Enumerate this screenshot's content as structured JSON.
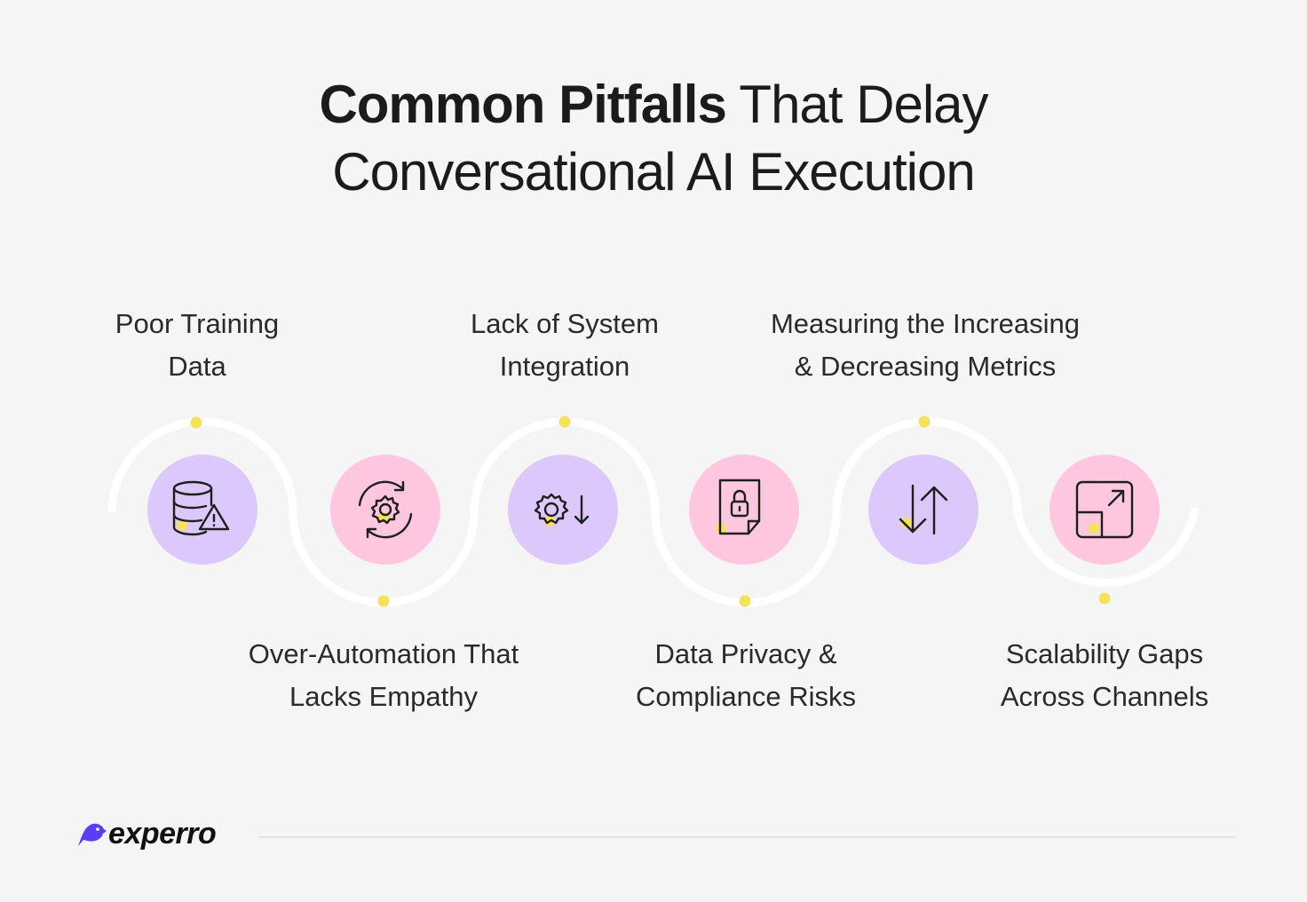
{
  "title": {
    "bold": "Common Pitfalls",
    "rest_line1": " That Delay",
    "line2": "Conversational AI Execution"
  },
  "items": [
    {
      "line1": "Poor Training",
      "line2": "Data",
      "icon": "database-warning-icon",
      "color": "#dcc8fb"
    },
    {
      "line1": "Over-Automation That",
      "line2": "Lacks Empathy",
      "icon": "gear-refresh-icon",
      "color": "#ffc7df"
    },
    {
      "line1": "Lack of System",
      "line2": "Integration",
      "icon": "gear-arrow-down-icon",
      "color": "#dcc8fb"
    },
    {
      "line1": "Data Privacy &",
      "line2": "Compliance Risks",
      "icon": "document-lock-icon",
      "color": "#ffc7df"
    },
    {
      "line1": "Measuring the Increasing",
      "line2": "& Decreasing Metrics",
      "icon": "arrows-up-down-icon",
      "color": "#dcc8fb"
    },
    {
      "line1": "Scalability Gaps",
      "line2": "Across Channels",
      "icon": "expand-square-icon",
      "color": "#ffc7df"
    }
  ],
  "colors": {
    "purple": "#dcc8fb",
    "pink": "#ffc7df",
    "dot": "#f4e25b",
    "background": "#f5f5f5"
  },
  "brand": {
    "name": "experro",
    "logo_icon": "bird-logo-icon"
  }
}
